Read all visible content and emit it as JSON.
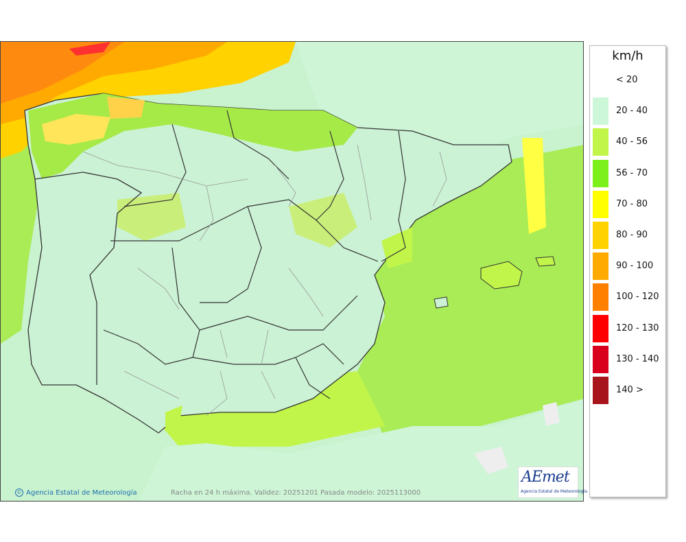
{
  "legend": {
    "unit": "km/h",
    "ranges": [
      {
        "label": "< 20",
        "color": "#ffffff"
      },
      {
        "label": "20 - 40",
        "color": "#ccf7d8"
      },
      {
        "label": "40 - 56",
        "color": "#c2f54a"
      },
      {
        "label": "56 - 70",
        "color": "#7cf01a"
      },
      {
        "label": "70 - 80",
        "color": "#ffff00"
      },
      {
        "label": "80 - 90",
        "color": "#ffd200"
      },
      {
        "label": "90 - 100",
        "color": "#ffaa00"
      },
      {
        "label": "100 - 120",
        "color": "#ff7f00"
      },
      {
        "label": "120 - 130",
        "color": "#ff0000"
      },
      {
        "label": "130 - 140",
        "color": "#d8001c"
      },
      {
        "label": "140 >",
        "color": "#a8141c"
      }
    ]
  },
  "footer": {
    "credit": "Agencia Estatal de Meteorología",
    "caption": "Racha en 24 h máxima. Validez: 20251201 Pasada modelo: 2025113000"
  },
  "logo": {
    "wordmark": "AEmet",
    "subtitle": "Agencia Estatal de Meteorología"
  }
}
